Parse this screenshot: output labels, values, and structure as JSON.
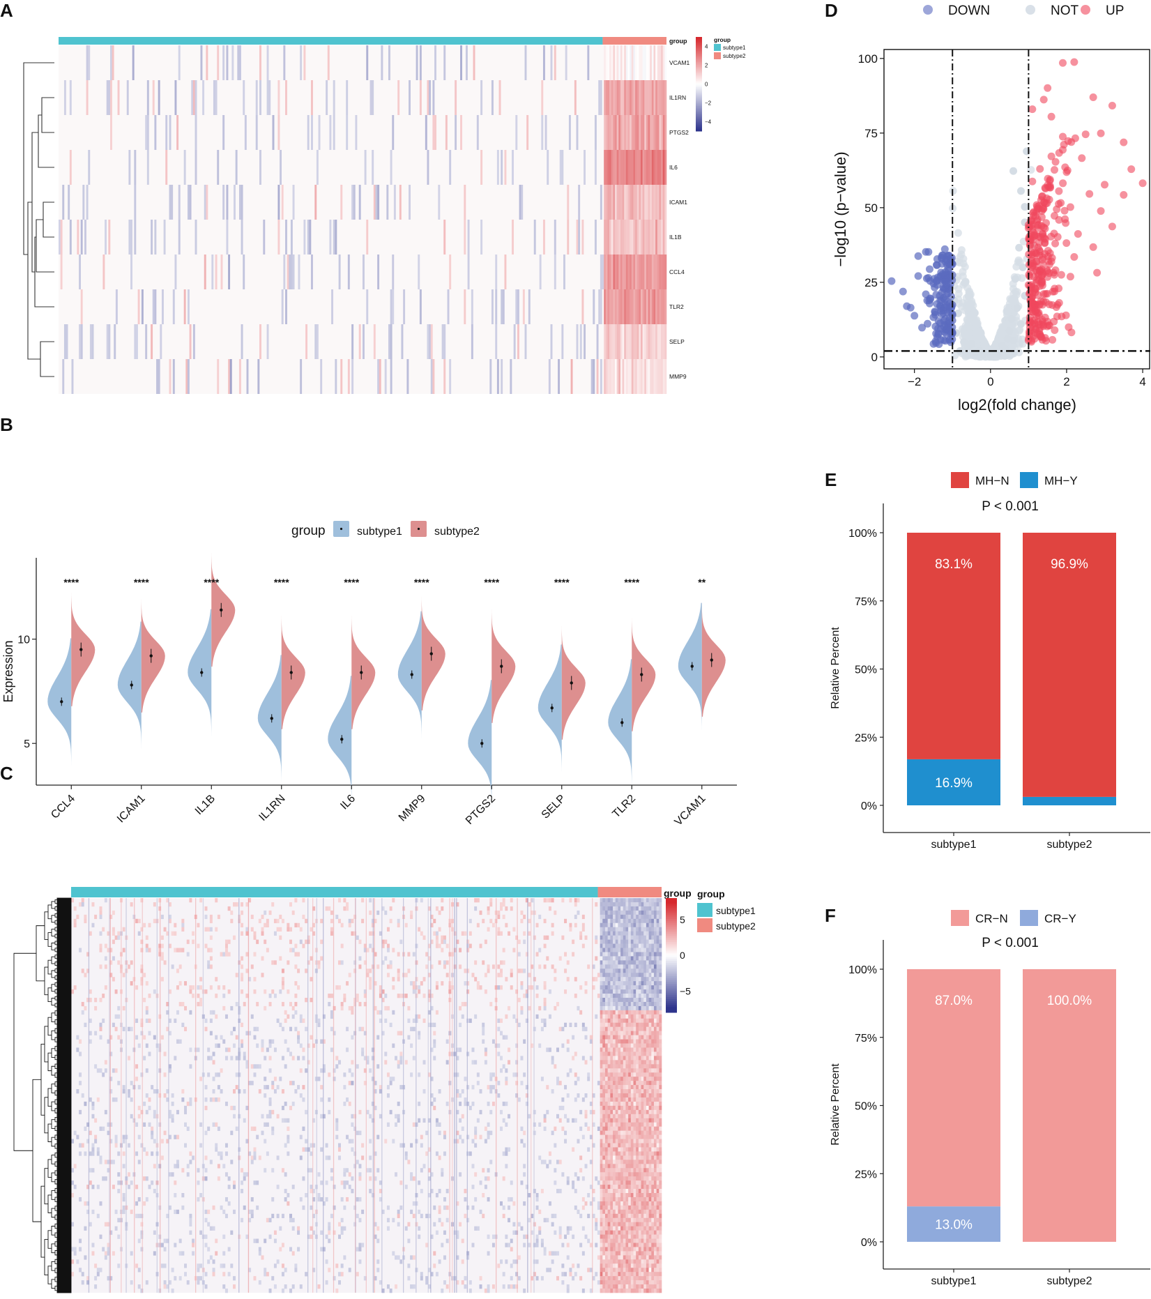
{
  "chart_data": [
    {
      "panel": "A",
      "type": "heatmap",
      "title": "",
      "genes": [
        "VCAM1",
        "IL1RN",
        "PTGS2",
        "IL6",
        "ICAM1",
        "IL1B",
        "CCL4",
        "TLR2",
        "SELP",
        "MMP9"
      ],
      "groups": [
        {
          "name": "subtype1",
          "color": "#4fc3cf",
          "fraction": 0.895
        },
        {
          "name": "subtype2",
          "color": "#f08a80",
          "fraction": 0.105
        }
      ],
      "annotation_label": "group",
      "legend_title": "group",
      "colorbar_ticks": [
        4,
        2,
        0,
        -2,
        -4
      ],
      "subtype2_mean_z": [
        0.3,
        1.8,
        2.0,
        2.6,
        1.6,
        1.4,
        2.3,
        2.1,
        1.0,
        0.7
      ]
    },
    {
      "panel": "B",
      "type": "split-violin",
      "legend_title": "group",
      "series": [
        {
          "name": "subtype1",
          "color": "#9fbfdc"
        },
        {
          "name": "subtype2",
          "color": "#dd8f8f"
        }
      ],
      "categories": [
        "CCL4",
        "ICAM1",
        "IL1B",
        "IL1RN",
        "IL6",
        "MMP9",
        "PTGS2",
        "SELP",
        "TLR2",
        "VCAM1"
      ],
      "median_subtype1": [
        7.0,
        7.8,
        8.4,
        6.2,
        5.2,
        8.3,
        5.0,
        6.7,
        6.0,
        8.7
      ],
      "median_subtype2": [
        9.5,
        9.2,
        11.4,
        8.4,
        8.4,
        9.3,
        8.7,
        7.9,
        8.3,
        9.0
      ],
      "significance": [
        "****",
        "****",
        "****",
        "****",
        "****",
        "****",
        "****",
        "****",
        "****",
        "**"
      ],
      "ylabel": "Expression",
      "yticks": [
        5,
        10
      ],
      "ylim": [
        3.0,
        13.9
      ]
    },
    {
      "panel": "C",
      "type": "heatmap",
      "groups": [
        {
          "name": "subtype1",
          "color": "#4fc3cf",
          "fraction": 0.892
        },
        {
          "name": "subtype2",
          "color": "#f08a80",
          "fraction": 0.108
        }
      ],
      "annotation_label": "group",
      "legend_title": "group",
      "colorbar_ticks": [
        5,
        0,
        -5
      ],
      "rows_block_split": 0.28,
      "subtype2_block_sign": [
        -1,
        1
      ]
    },
    {
      "panel": "D",
      "type": "scatter",
      "title": "",
      "legend": [
        "DOWN",
        "NOT",
        "UP"
      ],
      "colors": {
        "DOWN": "#5b6bbf",
        "NOT": "#d5dde5",
        "UP": "#f0475d"
      },
      "xlabel": "log2(fold change)",
      "ylabel": "−log10 (p−value)",
      "xlim": [
        -2.8,
        4.2
      ],
      "ylim": [
        -4,
        103
      ],
      "xticks": [
        -2,
        0,
        2,
        4
      ],
      "xtick_labels": [
        "−2",
        "0",
        "2",
        "4"
      ],
      "yticks": [
        0,
        25,
        50,
        75,
        100
      ],
      "fc_cutoffs": [
        -1,
        1
      ],
      "p_cutoff": 2,
      "up_points": [
        [
          1.9,
          98.5
        ],
        [
          2.2,
          98.8
        ],
        [
          1.5,
          90.1
        ],
        [
          1.4,
          86.2
        ],
        [
          2.7,
          87.0
        ],
        [
          1.1,
          83.0
        ],
        [
          1.6,
          80.5
        ],
        [
          1.9,
          73.8
        ],
        [
          2.9,
          74.9
        ],
        [
          3.2,
          84.2
        ],
        [
          3.5,
          71.9
        ],
        [
          3.7,
          62.9
        ],
        [
          4.0,
          58.2
        ],
        [
          3.5,
          54.3
        ],
        [
          2.9,
          48.9
        ],
        [
          3.2,
          43.7
        ],
        [
          2.7,
          36.8
        ],
        [
          2.8,
          28.2
        ],
        [
          2.1,
          26.9
        ],
        [
          1.4,
          21.1
        ],
        [
          1.1,
          10.8
        ],
        [
          1.0,
          5.5
        ],
        [
          1.2,
          17.4
        ],
        [
          1.6,
          32.0
        ],
        [
          2.3,
          41.2
        ],
        [
          1.8,
          45.9
        ],
        [
          2.6,
          54.6
        ],
        [
          1.3,
          63.0
        ],
        [
          2.0,
          61.9
        ],
        [
          1.5,
          57.5
        ],
        [
          1.2,
          48.5
        ],
        [
          1.7,
          38.0
        ],
        [
          2.2,
          33.5
        ],
        [
          1.0,
          24.1
        ],
        [
          1.9,
          69.4
        ],
        [
          2.4,
          66.6
        ],
        [
          1.1,
          58.8
        ],
        [
          1.4,
          43.4
        ],
        [
          2.1,
          50.2
        ],
        [
          1.3,
          35.3
        ],
        [
          3.0,
          57.7
        ],
        [
          1.2,
          29.0
        ],
        [
          2.5,
          74.6
        ],
        [
          1.6,
          67.2
        ],
        [
          1.0,
          44.2
        ]
      ],
      "down_points": [
        [
          -2.6,
          25.4
        ],
        [
          -2.3,
          21.9
        ],
        [
          -2.1,
          16.5
        ],
        [
          -1.9,
          33.8
        ],
        [
          -1.7,
          21.0
        ],
        [
          -1.5,
          13.3
        ],
        [
          -1.3,
          28.3
        ],
        [
          -1.2,
          36.1
        ],
        [
          -1.4,
          6.7
        ],
        [
          -1.1,
          10.5
        ],
        [
          -1.6,
          29.4
        ],
        [
          -1.8,
          9.8
        ],
        [
          -2.0,
          13.8
        ],
        [
          -1.2,
          19.2
        ],
        [
          -1.5,
          24.6
        ],
        [
          -1.9,
          27.1
        ],
        [
          -1.0,
          31.1
        ],
        [
          -1.3,
          16.4
        ],
        [
          -1.7,
          35.2
        ],
        [
          -1.1,
          22.8
        ],
        [
          -1.4,
          32.8
        ],
        [
          -1.6,
          17.9
        ],
        [
          -2.2,
          17.0
        ],
        [
          -1.2,
          26.4
        ],
        [
          -1.0,
          8.1
        ]
      ],
      "not_points": [
        [
          -0.8,
          2.0
        ],
        [
          -0.6,
          3.3
        ],
        [
          -0.4,
          1.5
        ],
        [
          -0.2,
          0.8
        ],
        [
          0.0,
          0.5
        ],
        [
          0.2,
          1.0
        ],
        [
          0.4,
          2.5
        ],
        [
          0.6,
          5.5
        ],
        [
          0.8,
          11.0
        ],
        [
          0.9,
          20.5
        ],
        [
          -0.9,
          8.0
        ],
        [
          -0.7,
          5.0
        ],
        [
          0.5,
          8.7
        ],
        [
          0.7,
          16.4
        ],
        [
          0.85,
          30.0
        ],
        [
          0.9,
          45.1
        ],
        [
          0.8,
          55.6
        ],
        [
          0.6,
          62.3
        ],
        [
          0.95,
          68.9
        ],
        [
          0.3,
          3.8
        ],
        [
          -0.3,
          2.1
        ],
        [
          -0.5,
          4.4
        ],
        [
          0.1,
          1.3
        ],
        [
          0.65,
          26.1
        ],
        [
          0.75,
          36.6
        ],
        [
          0.9,
          50.3
        ],
        [
          0.55,
          12.7
        ],
        [
          -0.85,
          14.6
        ],
        [
          -0.95,
          18.8
        ],
        [
          0.45,
          6.0
        ]
      ]
    },
    {
      "panel": "E",
      "type": "bar",
      "stacked": true,
      "categories": [
        "subtype1",
        "subtype2"
      ],
      "series": [
        {
          "name": "MH−N",
          "color": "#e04440",
          "values": [
            83.1,
            96.9
          ]
        },
        {
          "name": "MH−Y",
          "color": "#1f8fcf",
          "values": [
            16.9,
            3.1
          ]
        }
      ],
      "labels": [
        [
          "83.1%",
          "96.9%"
        ],
        [
          "16.9%",
          ""
        ]
      ],
      "annotation": "P < 0.001",
      "ylabel": "Relative Percent",
      "yticks": [
        "0%",
        "25%",
        "50%",
        "75%",
        "100%"
      ],
      "ylim": [
        0,
        100
      ]
    },
    {
      "panel": "F",
      "type": "bar",
      "stacked": true,
      "categories": [
        "subtype1",
        "subtype2"
      ],
      "series": [
        {
          "name": "CR−N",
          "color": "#f29a98",
          "values": [
            87.0,
            100.0
          ]
        },
        {
          "name": "CR−Y",
          "color": "#8faadc",
          "values": [
            13.0,
            0.0
          ]
        }
      ],
      "labels": [
        [
          "87.0%",
          "100.0%"
        ],
        [
          "13.0%",
          ""
        ]
      ],
      "annotation": "P < 0.001",
      "ylabel": "Relative Percent",
      "yticks": [
        "0%",
        "25%",
        "50%",
        "75%",
        "100%"
      ],
      "ylim": [
        0,
        100
      ]
    }
  ],
  "panel_letters": [
    "A",
    "B",
    "C",
    "D",
    "E",
    "F"
  ]
}
